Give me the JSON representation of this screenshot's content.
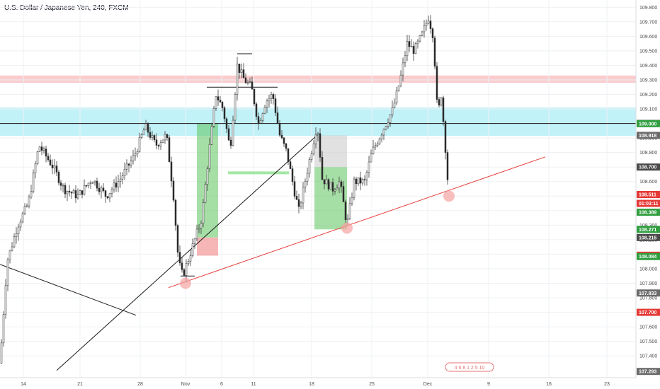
{
  "header": {
    "title": "U.S. Dollar / Japanese Yen, 240, FXCM"
  },
  "colors": {
    "up": "#4a4a4a",
    "down": "#333333",
    "resistance_band": "#f8b6b9",
    "support_band": "#a6ecf5",
    "trendline_red": "#e53935",
    "trendline_black": "#1a1a1a",
    "long_profit": "#5cc45c",
    "long_stop": "#f07a7a",
    "gray_box": "#c8c8c8",
    "green_line": "#a5e6a5"
  },
  "watermark_text": "4 6 8 1 2 5 10",
  "chart_data": {
    "type": "candlestick",
    "title": "U.S. Dollar / Japanese Yen, 240, FXCM",
    "ylim": [
      107.25,
      109.85
    ],
    "y_ticks": [
      107.4,
      107.5,
      107.6,
      107.7,
      107.8,
      107.9,
      108.0,
      108.1,
      108.2,
      108.3,
      108.4,
      108.5,
      108.6,
      108.7,
      108.8,
      108.9,
      109.1,
      109.2,
      109.3,
      109.4,
      109.5,
      109.6,
      109.7,
      109.8
    ],
    "y_tick_labels": [
      "107.400",
      "107.500",
      "107.600",
      "107.700",
      "107.800",
      "107.900",
      "108.000",
      "108.100",
      "108.200",
      "108.300",
      "108.400",
      "108.500",
      "108.600",
      "108.700",
      "108.800",
      "108.900",
      "109.100",
      "109.200",
      "109.300",
      "109.400",
      "109.500",
      "109.600",
      "109.700",
      "109.800"
    ],
    "x_labels": [
      "14",
      "21",
      "28",
      "Nov",
      "6",
      "11",
      "18",
      "25",
      "Dec",
      "9",
      "16",
      "23"
    ],
    "price_tags": [
      {
        "value": 109.0,
        "label": "109.000",
        "color": "#1a1a1a"
      },
      {
        "value": 108.999,
        "label": "109.000",
        "color": "#2e9e3e"
      },
      {
        "value": 108.918,
        "label": "108.918",
        "color": "#6b6b6b"
      },
      {
        "value": 108.7,
        "label": "108.700",
        "color": "#4a4a4a"
      },
      {
        "value": 108.511,
        "label": "108.511",
        "color": "#e53935"
      },
      {
        "value": 108.45,
        "label": "01:03:11",
        "color": "#e53935"
      },
      {
        "value": 108.389,
        "label": "108.389",
        "color": "#2e9e3e"
      },
      {
        "value": 108.271,
        "label": "108.271",
        "color": "#2e9e3e"
      },
      {
        "value": 108.215,
        "label": "108.215",
        "color": "#4a4a4a"
      },
      {
        "value": 108.093,
        "label": "108.093",
        "color": "#e53935"
      },
      {
        "value": 108.084,
        "label": "108.084",
        "color": "#2e9e3e"
      },
      {
        "value": 107.833,
        "label": "107.833",
        "color": "#6b6b6b"
      },
      {
        "value": 107.7,
        "label": "107.700",
        "color": "#e53935"
      },
      {
        "value": 107.293,
        "label": "107.293",
        "color": "#6b6b6b"
      }
    ],
    "zones": {
      "resistance": [
        109.28,
        109.33
      ],
      "support": [
        108.915,
        109.11
      ]
    },
    "horizontal_line": 109.0,
    "key_points": [
      [
        0,
        107.35
      ],
      [
        10,
        108.05
      ],
      [
        25,
        108.3
      ],
      [
        40,
        108.45
      ],
      [
        55,
        108.85
      ],
      [
        75,
        108.7
      ],
      [
        90,
        108.55
      ],
      [
        110,
        108.5
      ],
      [
        130,
        108.62
      ],
      [
        150,
        108.5
      ],
      [
        170,
        108.62
      ],
      [
        190,
        108.78
      ],
      [
        205,
        108.98
      ],
      [
        220,
        108.85
      ],
      [
        235,
        108.92
      ],
      [
        245,
        108.5
      ],
      [
        252,
        108.05
      ],
      [
        258,
        107.95
      ],
      [
        265,
        108.05
      ],
      [
        275,
        108.2
      ],
      [
        285,
        108.35
      ],
      [
        295,
        108.8
      ],
      [
        305,
        109.2
      ],
      [
        315,
        109.1
      ],
      [
        325,
        108.82
      ],
      [
        335,
        109.4
      ],
      [
        345,
        109.3
      ],
      [
        355,
        109.25
      ],
      [
        365,
        109.0
      ],
      [
        375,
        109.15
      ],
      [
        385,
        109.2
      ],
      [
        395,
        108.92
      ],
      [
        405,
        108.8
      ],
      [
        415,
        108.55
      ],
      [
        422,
        108.4
      ],
      [
        435,
        108.7
      ],
      [
        448,
        109.0
      ],
      [
        455,
        108.62
      ],
      [
        470,
        108.55
      ],
      [
        480,
        108.6
      ],
      [
        490,
        108.3
      ],
      [
        500,
        108.6
      ],
      [
        515,
        108.6
      ],
      [
        525,
        108.8
      ],
      [
        540,
        108.95
      ],
      [
        555,
        109.1
      ],
      [
        565,
        109.3
      ],
      [
        575,
        109.55
      ],
      [
        585,
        109.5
      ],
      [
        595,
        109.6
      ],
      [
        605,
        109.73
      ],
      [
        612,
        109.6
      ],
      [
        618,
        109.05
      ],
      [
        623,
        109.2
      ],
      [
        628,
        108.9
      ],
      [
        633,
        108.55
      ]
    ],
    "red_trendline": {
      "start": [
        238,
        107.87
      ],
      "end": [
        770,
        108.77
      ]
    },
    "black_diagonal": {
      "start": [
        80,
        107.3
      ],
      "end": [
        448,
        108.92
      ]
    },
    "black_descending": {
      "start": [
        0,
        108.03
      ],
      "end": [
        192,
        107.68
      ]
    },
    "markers": [
      [
        262,
        107.9
      ],
      [
        490,
        108.28
      ],
      [
        634,
        108.5
      ]
    ],
    "long_positions": [
      {
        "x": [
          278,
          308
        ],
        "profit": [
          108.215,
          109.0
        ],
        "stop": [
          108.09,
          108.215
        ]
      },
      {
        "x": [
          444,
          490
        ],
        "profit": [
          108.271,
          108.7
        ],
        "stop_gray": [
          108.7,
          108.918
        ]
      }
    ],
    "segments": {
      "green_line": {
        "x": [
          322,
          408
        ],
        "y": 108.66
      },
      "top_line": {
        "x": [
          292,
          392
        ],
        "y": 109.25
      },
      "high_line": {
        "x": [
          335,
          356
        ],
        "y": 109.48
      },
      "low_line": {
        "x": [
          255,
          275
        ],
        "y": 107.95
      }
    }
  }
}
